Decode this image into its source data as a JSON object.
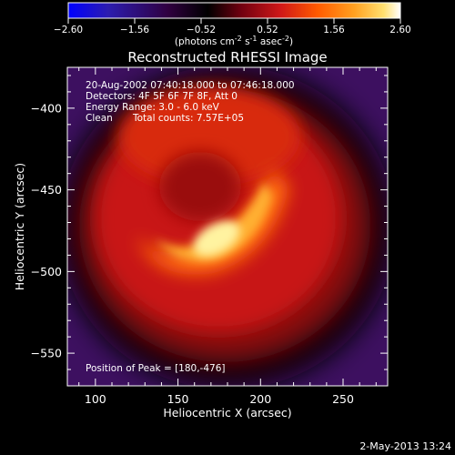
{
  "chart_data": {
    "type": "heatmap",
    "title": "Reconstructed RHESSI Image",
    "xlabel": "Heliocentric X (arcsec)",
    "ylabel": "Heliocentric Y (arcsec)",
    "xlim": [
      83,
      277
    ],
    "ylim": [
      -570,
      -375
    ],
    "xticks": [
      100,
      150,
      200,
      250
    ],
    "yticks": [
      -400,
      -450,
      -500,
      -550
    ],
    "colorbar": {
      "min": -2.6,
      "max": 2.6,
      "ticks": [
        "-2.60",
        "-1.56",
        "-0.52",
        "0.52",
        "1.56",
        "2.60"
      ],
      "label_parts": [
        "(photons cm",
        "-2",
        " s",
        "-1",
        " asec",
        "-2",
        ")"
      ],
      "colormap": [
        "#0000ff",
        "#3a1a8a",
        "#2a002a",
        "#000000",
        "#6a0010",
        "#c01010",
        "#ff4000",
        "#ff9a20",
        "#ffe060",
        "#ffffff"
      ]
    },
    "annotations": [
      "20-Aug-2002 07:40:18.000 to 07:46:18.000",
      "Detectors: 4F 5F 6F 7F 8F, Att 0",
      "Energy Range: 3.0 - 6.0 keV",
      "Clean",
      "Total counts: 7.57E+05"
    ],
    "peak_label": "Position of Peak = [180,-476]",
    "peak": {
      "x": 180,
      "y": -476
    }
  },
  "timestamp": "2-May-2013 13:24"
}
